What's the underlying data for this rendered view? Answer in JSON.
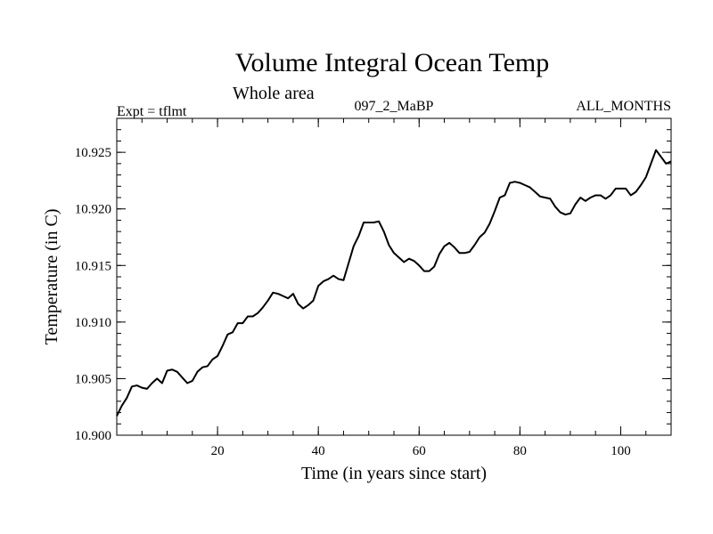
{
  "chart_data": {
    "type": "line",
    "title": "Volume Integral Ocean Temp",
    "subtitle": "Whole area",
    "left_label": "Expt = tflmt",
    "center_label": "097_2_MaBP",
    "right_label": "ALL_MONTHS",
    "xlabel": "Time (in years since start)",
    "ylabel": "Temperature (in C)",
    "xlim": [
      0,
      110
    ],
    "ylim": [
      10.9,
      10.928
    ],
    "xticks": [
      20,
      40,
      60,
      80,
      100
    ],
    "xtick_labels": [
      "20",
      "40",
      "60",
      "80",
      "100"
    ],
    "yticks": [
      10.9,
      10.905,
      10.91,
      10.915,
      10.92,
      10.925
    ],
    "ytick_labels": [
      "10.900",
      "10.905",
      "10.910",
      "10.915",
      "10.920",
      "10.925"
    ],
    "x_minor_step": 5,
    "y_minor_step": 0.001,
    "series": [
      {
        "name": "Volume Integral Ocean Temp",
        "color": "#000000",
        "points": [
          [
            0,
            10.9017
          ],
          [
            1,
            10.9026
          ],
          [
            2,
            10.9033
          ],
          [
            3,
            10.9043
          ],
          [
            4,
            10.9044
          ],
          [
            5,
            10.9042
          ],
          [
            6,
            10.9041
          ],
          [
            7,
            10.9046
          ],
          [
            8,
            10.905
          ],
          [
            9,
            10.9046
          ],
          [
            10,
            10.9057
          ],
          [
            11,
            10.9058
          ],
          [
            12,
            10.9056
          ],
          [
            13,
            10.9051
          ],
          [
            14,
            10.9046
          ],
          [
            15,
            10.9048
          ],
          [
            16,
            10.9056
          ],
          [
            17,
            10.906
          ],
          [
            18,
            10.9061
          ],
          [
            19,
            10.9067
          ],
          [
            20,
            10.907
          ],
          [
            21,
            10.9079
          ],
          [
            22,
            10.9089
          ],
          [
            23,
            10.9091
          ],
          [
            24,
            10.9099
          ],
          [
            25,
            10.9099
          ],
          [
            26,
            10.9105
          ],
          [
            27,
            10.9105
          ],
          [
            28,
            10.9108
          ],
          [
            29,
            10.9113
          ],
          [
            30,
            10.9119
          ],
          [
            31,
            10.9126
          ],
          [
            32,
            10.9125
          ],
          [
            33,
            10.9123
          ],
          [
            34,
            10.9121
          ],
          [
            35,
            10.9125
          ],
          [
            36,
            10.9116
          ],
          [
            37,
            10.9112
          ],
          [
            38,
            10.9115
          ],
          [
            39,
            10.9119
          ],
          [
            40,
            10.9132
          ],
          [
            41,
            10.9136
          ],
          [
            42,
            10.9138
          ],
          [
            43,
            10.9141
          ],
          [
            44,
            10.9138
          ],
          [
            45,
            10.9137
          ],
          [
            46,
            10.9152
          ],
          [
            47,
            10.9167
          ],
          [
            48,
            10.9176
          ],
          [
            49,
            10.9188
          ],
          [
            50,
            10.9188
          ],
          [
            51,
            10.9188
          ],
          [
            52,
            10.9189
          ],
          [
            53,
            10.918
          ],
          [
            54,
            10.9168
          ],
          [
            55,
            10.9161
          ],
          [
            56,
            10.9157
          ],
          [
            57,
            10.9153
          ],
          [
            58,
            10.9156
          ],
          [
            59,
            10.9154
          ],
          [
            60,
            10.915
          ],
          [
            61,
            10.9145
          ],
          [
            62,
            10.9145
          ],
          [
            63,
            10.9149
          ],
          [
            64,
            10.916
          ],
          [
            65,
            10.9167
          ],
          [
            66,
            10.917
          ],
          [
            67,
            10.9166
          ],
          [
            68,
            10.9161
          ],
          [
            69,
            10.9161
          ],
          [
            70,
            10.9162
          ],
          [
            71,
            10.9168
          ],
          [
            72,
            10.9175
          ],
          [
            73,
            10.9179
          ],
          [
            74,
            10.9187
          ],
          [
            75,
            10.9198
          ],
          [
            76,
            10.921
          ],
          [
            77,
            10.9212
          ],
          [
            78,
            10.9223
          ],
          [
            79,
            10.9224
          ],
          [
            80,
            10.9223
          ],
          [
            81,
            10.9221
          ],
          [
            82,
            10.9219
          ],
          [
            83,
            10.9215
          ],
          [
            84,
            10.9211
          ],
          [
            85,
            10.921
          ],
          [
            86,
            10.9209
          ],
          [
            87,
            10.9202
          ],
          [
            88,
            10.9197
          ],
          [
            89,
            10.9195
          ],
          [
            90,
            10.9196
          ],
          [
            91,
            10.9204
          ],
          [
            92,
            10.921
          ],
          [
            93,
            10.9207
          ],
          [
            94,
            10.921
          ],
          [
            95,
            10.9212
          ],
          [
            96,
            10.9212
          ],
          [
            97,
            10.9209
          ],
          [
            98,
            10.9212
          ],
          [
            99,
            10.9218
          ],
          [
            100,
            10.9218
          ],
          [
            101,
            10.9218
          ],
          [
            102,
            10.9212
          ],
          [
            103,
            10.9215
          ],
          [
            104,
            10.9221
          ],
          [
            105,
            10.9228
          ],
          [
            106,
            10.924
          ],
          [
            107,
            10.9252
          ],
          [
            108,
            10.9246
          ],
          [
            109,
            10.924
          ],
          [
            110,
            10.9242
          ]
        ]
      }
    ]
  }
}
